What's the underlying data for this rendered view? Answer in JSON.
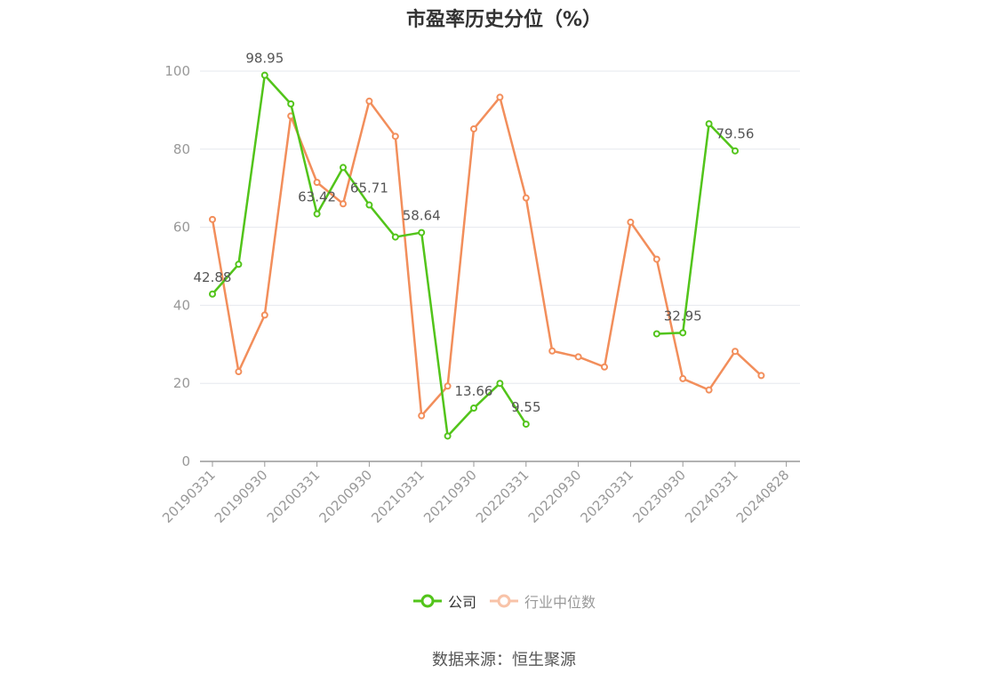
{
  "chart_data": {
    "type": "line",
    "title": "市盈率历史分位（%）",
    "ylim": [
      0,
      100
    ],
    "yticks": [
      0,
      20,
      40,
      60,
      80,
      100
    ],
    "grid": true,
    "legend_position": "bottom-center",
    "x_tick_labels": [
      "20190331",
      "20190930",
      "20200331",
      "20200930",
      "20210331",
      "20210930",
      "20220331",
      "20220930",
      "20230331",
      "20230930",
      "20240331",
      "20240828"
    ],
    "x": [
      "20190331",
      "20190630",
      "20190930",
      "20191231",
      "20200331",
      "20200630",
      "20200930",
      "20201231",
      "20210331",
      "20210630",
      "20210930",
      "20211231",
      "20220331",
      "20220630",
      "20220930",
      "20221231",
      "20230331",
      "20230630",
      "20230930",
      "20231231",
      "20240331",
      "20240630"
    ],
    "series": [
      {
        "name": "公司",
        "color": "#52c41a",
        "values": [
          42.88,
          50.5,
          98.95,
          91.6,
          63.42,
          75.3,
          65.71,
          57.5,
          58.64,
          6.5,
          13.66,
          20.0,
          9.55,
          null,
          null,
          null,
          null,
          32.7,
          32.95,
          86.5,
          79.56,
          null
        ],
        "data_labels": {
          "0": "42.88",
          "2": "98.95",
          "4": "63.42",
          "6": "65.71",
          "8": "58.64",
          "10": "13.66",
          "12": "9.55",
          "18": "32.95",
          "20": "79.56"
        }
      },
      {
        "name": "行业中位数",
        "color": "#f28e5b",
        "values": [
          62.0,
          23.0,
          37.5,
          88.5,
          71.5,
          66.0,
          92.3,
          83.3,
          11.7,
          19.3,
          85.2,
          93.3,
          67.5,
          28.3,
          26.8,
          24.2,
          61.3,
          51.8,
          21.2,
          18.3,
          28.2,
          22.0
        ]
      }
    ]
  },
  "legend": {
    "company": "公司",
    "industry": "行业中位数"
  },
  "source": "数据来源：恒生聚源"
}
